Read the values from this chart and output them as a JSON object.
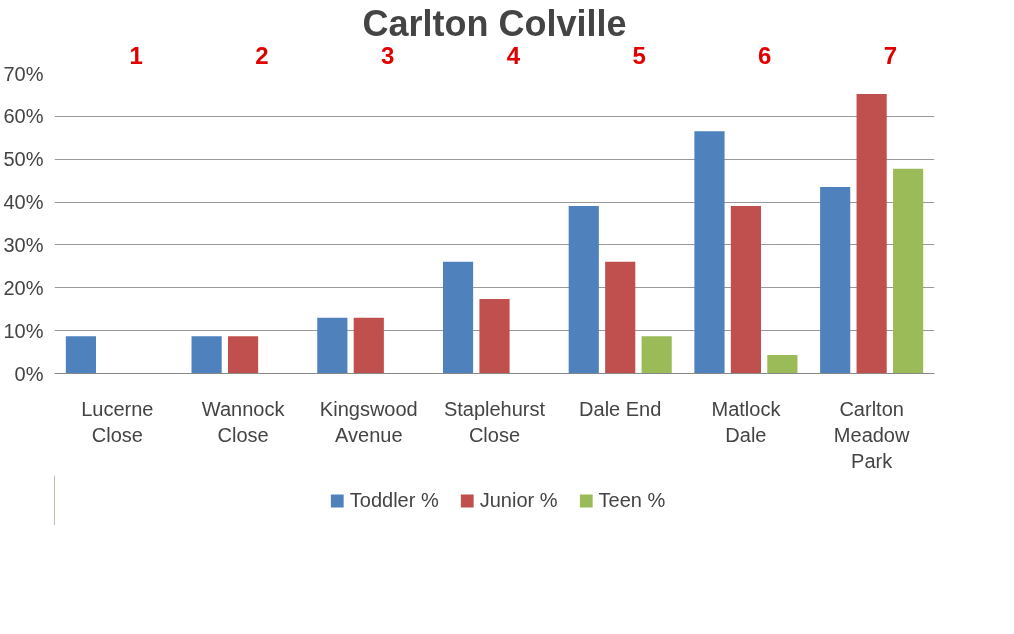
{
  "chart_data": {
    "type": "bar",
    "title": "Carlton Colville",
    "categories": [
      "Lucerne Close",
      "Wannock Close",
      "Kingswood Avenue",
      "Staplehurst Close",
      "Dale End",
      "Matlock Dale",
      "Carlton Meadow Park"
    ],
    "series": [
      {
        "name": "Toddler %",
        "color": "#4f81bd",
        "values": [
          8.7,
          8.7,
          13.0,
          26.1,
          39.1,
          56.5,
          43.5
        ]
      },
      {
        "name": "Junior %",
        "color": "#c0504d",
        "values": [
          null,
          8.7,
          13.0,
          17.4,
          26.1,
          39.1,
          65.2
        ]
      },
      {
        "name": "Teen %",
        "color": "#9bbb59",
        "values": [
          null,
          null,
          null,
          null,
          8.7,
          4.3,
          47.8
        ]
      }
    ],
    "ylim": [
      0,
      70
    ],
    "yticks": [
      {
        "value": 0,
        "label": "0%"
      },
      {
        "value": 10,
        "label": "10%"
      },
      {
        "value": 20,
        "label": "20%"
      },
      {
        "value": 30,
        "label": "30%"
      },
      {
        "value": 40,
        "label": "40%"
      },
      {
        "value": 50,
        "label": "50%"
      },
      {
        "value": 60,
        "label": "60%"
      },
      {
        "value": 70,
        "label": "70%"
      }
    ],
    "grid": "y",
    "legend": "bottom",
    "annotations": [
      "1",
      "2",
      "3",
      "4",
      "5",
      "6",
      "7"
    ]
  }
}
